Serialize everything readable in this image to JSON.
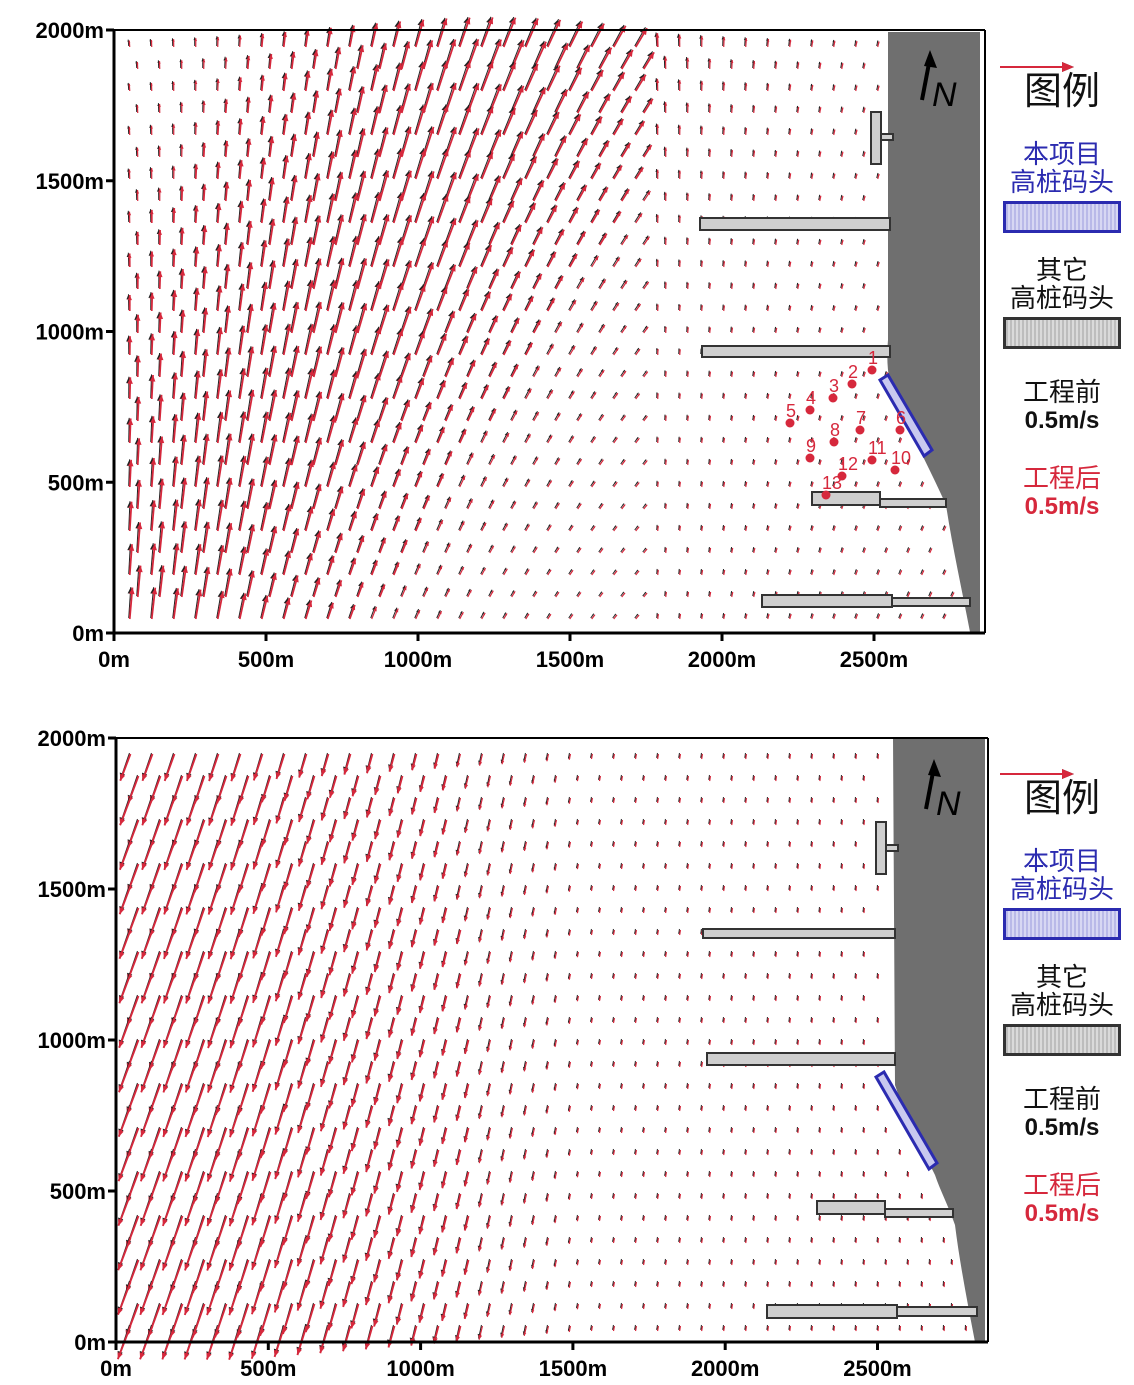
{
  "panels": [
    {
      "id": "top",
      "axis": {
        "y_ticks": [
          "2000m",
          "1500m",
          "1000m",
          "500m",
          "0m"
        ],
        "x_ticks": [
          "0m",
          "500m",
          "1000m",
          "1500m",
          "2000m",
          "2500m"
        ]
      },
      "north_label": "N",
      "station_labels": [
        "1",
        "2",
        "3",
        "4",
        "5",
        "6",
        "7",
        "8",
        "9",
        "10",
        "11",
        "12",
        "13"
      ],
      "legend": {
        "title": "图例",
        "project_label_1": "本项目",
        "project_label_2": "高桩码头",
        "other_label_1": "其它",
        "other_label_2": "高桩码头",
        "before_label": "工程前",
        "before_speed": "0.5m/s",
        "after_label": "工程后",
        "after_speed": "0.5m/s"
      }
    },
    {
      "id": "bottom",
      "axis": {
        "y_ticks": [
          "2000m",
          "1500m",
          "1000m",
          "500m",
          "0m"
        ],
        "x_ticks": [
          "0m",
          "500m",
          "1000m",
          "1500m",
          "2000m",
          "2500m"
        ]
      },
      "north_label": "N",
      "legend": {
        "title": "图例",
        "project_label_1": "本项目",
        "project_label_2": "高桩码头",
        "other_label_1": "其它",
        "other_label_2": "高桩码头",
        "before_label": "工程前",
        "before_speed": "0.5m/s",
        "after_label": "工程后",
        "after_speed": "0.5m/s"
      }
    }
  ],
  "colors": {
    "after_arrow": "#d6283c",
    "before_arrow": "#222222",
    "land": "#6f6f6f",
    "project_pier": "#2b2bb0",
    "other_pier": "#cfcfcf"
  }
}
